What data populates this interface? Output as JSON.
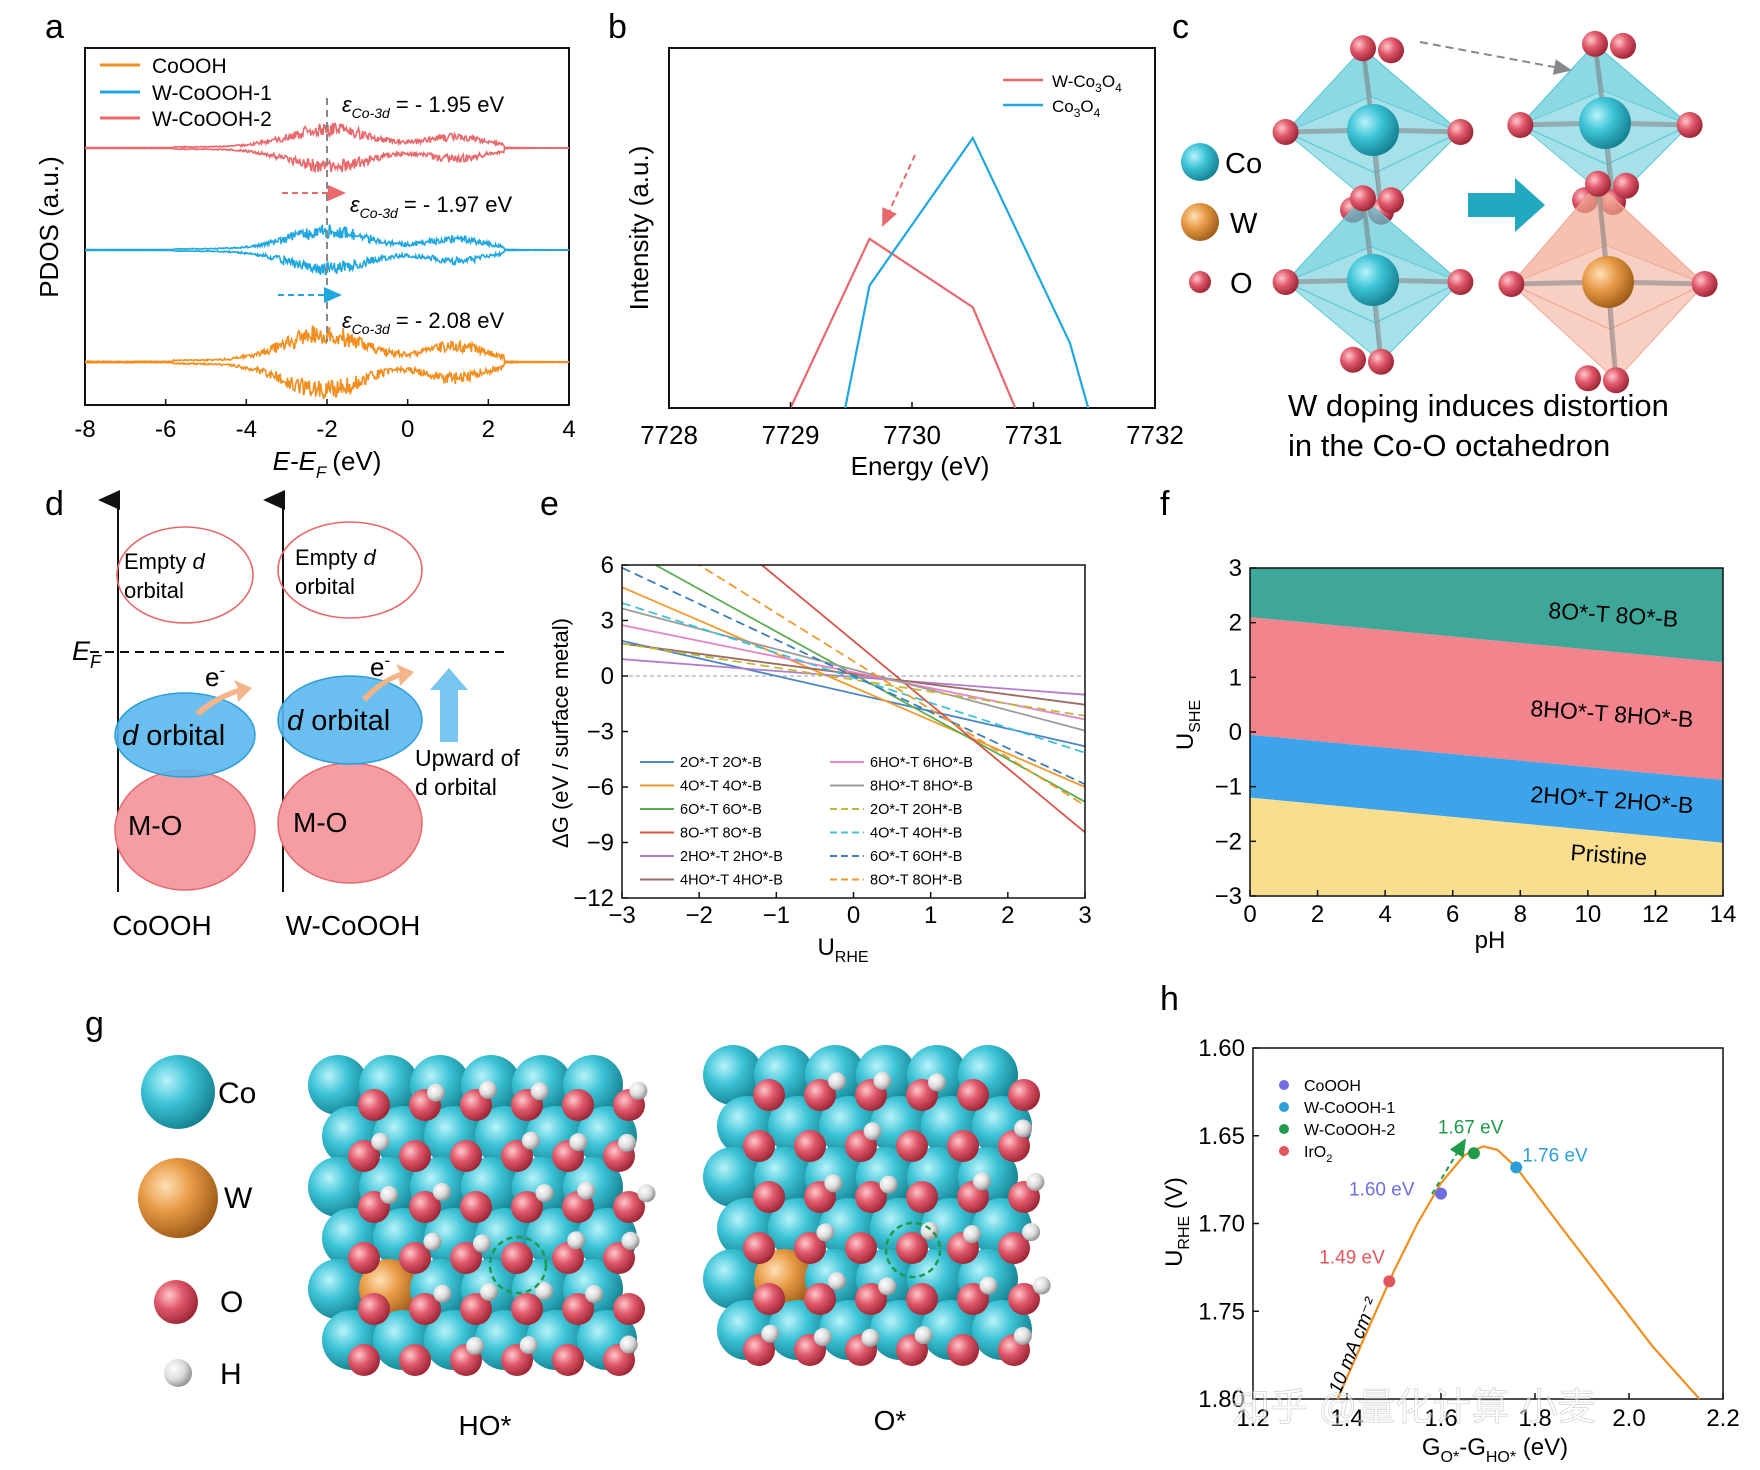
{
  "panels": [
    "a",
    "b",
    "c",
    "d",
    "e",
    "f",
    "g",
    "h"
  ],
  "colors": {
    "orange": "#F28E1E",
    "blue": "#1FA7DF",
    "red": "#E8686C",
    "teal": "#3FA79A",
    "pink": "#F2848E",
    "yellow": "#F8DE8E",
    "co": "#3CC3D6",
    "w": "#E79A45",
    "o": "#E0596A",
    "h": "#D8D8D8"
  },
  "chart_data": [
    {
      "panel": "a",
      "type": "line",
      "xlabel": "E-E",
      "xlabel_sub": "F",
      "xlabel_unit": "(eV)",
      "ylabel": "PDOS (a.u.)",
      "xlim": [
        -8,
        4
      ],
      "xticks": [
        "-8",
        "-6",
        "-4",
        "-2",
        "0",
        "2",
        "4"
      ],
      "legend": [
        "CoOOH",
        "W-CoOOH-1",
        "W-CoOOH-2"
      ],
      "annotations": [
        {
          "text": "ε",
          "sub": "Co-3d",
          "rest": " = - 1.95 eV"
        },
        {
          "text": "ε",
          "sub": "Co-3d",
          "rest": " = - 1.97 eV"
        },
        {
          "text": "ε",
          "sub": "Co-3d",
          "rest": " = - 2.08 eV"
        }
      ],
      "series": [
        {
          "name": "W-CoOOH-2",
          "offset": 2,
          "center": -1.95
        },
        {
          "name": "W-CoOOH-1",
          "offset": 1,
          "center": -1.97
        },
        {
          "name": "CoOOH",
          "offset": 0,
          "center": -2.08
        }
      ]
    },
    {
      "panel": "b",
      "type": "line",
      "xlabel": "Energy (eV)",
      "ylabel": "Intensity (a.u.)",
      "xlim": [
        7728,
        7732
      ],
      "xticks": [
        "7728",
        "7729",
        "7730",
        "7731",
        "7732"
      ],
      "legend": [
        {
          "pre": "W-Co",
          "s1": "3",
          "mid": "O",
          "s2": "4"
        },
        {
          "pre": "Co",
          "s1": "3",
          "mid": "O",
          "s2": "4"
        }
      ],
      "series": [
        {
          "name": "W-Co3O4",
          "x": [
            7729.0,
            7729.65,
            7730.5,
            7730.85
          ],
          "y": [
            0,
            0.47,
            0.28,
            0
          ]
        },
        {
          "name": "Co3O4",
          "x": [
            7729.45,
            7729.65,
            7730.5,
            7731.3,
            7731.45
          ],
          "y": [
            0,
            0.34,
            0.75,
            0.18,
            0
          ]
        }
      ]
    },
    {
      "panel": "e",
      "type": "line",
      "xlabel": "U",
      "xlabel_sub": "RHE",
      "ylabel": "ΔG (eV / surface metal)",
      "xlim": [
        -3,
        3
      ],
      "ylim": [
        -12,
        6
      ],
      "xticks": [
        "−3",
        "−2",
        "−1",
        "0",
        "1",
        "2",
        "3"
      ],
      "yticks": [
        "6",
        "3",
        "0",
        "−3",
        "−6",
        "−9",
        "−12"
      ],
      "series": [
        {
          "name": "2O*-T 2O*-B",
          "color": "#4C86C6",
          "dash": false,
          "y0": -0.95,
          "slope": -0.95
        },
        {
          "name": "4O*-T 4O*-B",
          "color": "#F2992E",
          "dash": false,
          "y0": -0.6,
          "slope": -1.8
        },
        {
          "name": "6O*-T 6O*-B",
          "color": "#5AAE4F",
          "dash": false,
          "y0": 0.1,
          "slope": -2.3
        },
        {
          "name": "8O-*T 8O*-B",
          "color": "#D95448",
          "dash": false,
          "y0": 1.9,
          "slope": -3.45
        },
        {
          "name": "2HO*-T 2HO*-B",
          "color": "#B07CCC",
          "dash": false,
          "y0": -0.05,
          "slope": -0.32
        },
        {
          "name": "4HO*-T 4HO*-B",
          "color": "#9D6B62",
          "dash": false,
          "y0": 0.1,
          "slope": -0.55
        },
        {
          "name": "6HO*-T 6HO*-B",
          "color": "#E983C7",
          "dash": false,
          "y0": 0.2,
          "slope": -0.85
        },
        {
          "name": "8HO*-T 8HO*-B",
          "color": "#9C9C9C",
          "dash": false,
          "y0": 0.35,
          "slope": -1.1
        },
        {
          "name": "2O*-T 2OH*-B",
          "color": "#BBBB3A",
          "dash": true,
          "y0": -0.2,
          "slope": -0.65
        },
        {
          "name": "4O*-T 4OH*-B",
          "color": "#41C2D2",
          "dash": true,
          "y0": -0.1,
          "slope": -1.35
        },
        {
          "name": "6O*-T 6OH*-B",
          "color": "#3F7DB5",
          "dash": true,
          "y0": 0.0,
          "slope": -1.95
        },
        {
          "name": "8O*-T 8OH*-B",
          "color": "#F2992E",
          "dash": true,
          "y0": 0.8,
          "slope": -2.6
        }
      ]
    },
    {
      "panel": "f",
      "type": "area",
      "xlabel": "pH",
      "ylabel": "U",
      "ylabel_sub": "SHE",
      "xlim": [
        0,
        14
      ],
      "ylim": [
        -3,
        3
      ],
      "xticks": [
        "0",
        "2",
        "4",
        "6",
        "8",
        "10",
        "12",
        "14"
      ],
      "yticks": [
        "3",
        "2",
        "1",
        "0",
        "−1",
        "−2",
        "−3"
      ],
      "boundaries": [
        {
          "at_ph0": 2.1,
          "slope": -0.0591
        },
        {
          "at_ph0": -0.05,
          "slope": -0.0591
        },
        {
          "at_ph0": -1.2,
          "slope": -0.0591
        }
      ],
      "regions": [
        "8O*-T 8O*-B",
        "8HO*-T 8HO*-B",
        "2HO*-T 2HO*-B",
        "Pristine"
      ]
    },
    {
      "panel": "h",
      "type": "scatter",
      "xlabel": "G",
      "xlabel_sub1": "O*",
      "xlabel_mid": "-G",
      "xlabel_sub2": "HO*",
      "xlabel_unit": " (eV)",
      "ylabel": "U",
      "ylabel_sub": "RHE",
      "ylabel_unit": " (V)",
      "xlim": [
        1.2,
        2.2
      ],
      "ylim": [
        1.8,
        1.6
      ],
      "xticks": [
        "1.2",
        "1.4",
        "1.6",
        "1.8",
        "2.0",
        "2.2"
      ],
      "yticks": [
        "1.60",
        "1.65",
        "1.70",
        "1.75",
        "1.80"
      ],
      "curve_label": "10 mA cm⁻²",
      "curve": {
        "x": [
          1.38,
          1.45,
          1.5,
          1.55,
          1.6,
          1.65,
          1.69,
          1.72,
          1.76,
          1.85,
          1.95,
          2.05,
          2.15
        ],
        "y": [
          1.8,
          1.757,
          1.727,
          1.7,
          1.677,
          1.661,
          1.656,
          1.658,
          1.668,
          1.7,
          1.735,
          1.77,
          1.8
        ]
      },
      "series": [
        {
          "name": "CoOOH",
          "x": 1.6,
          "y": 1.683,
          "label": "1.60 eV",
          "color": "#6E6EE0"
        },
        {
          "name": "W-CoOOH-1",
          "x": 1.76,
          "y": 1.668,
          "label": "1.76 eV",
          "color": "#2C9ED8"
        },
        {
          "name": "W-CoOOH-2",
          "x": 1.67,
          "y": 1.66,
          "label": "1.67 eV",
          "color": "#1E9A48"
        },
        {
          "name": "IrO",
          "name_sub": "2",
          "x": 1.49,
          "y": 1.733,
          "label": "1.49 eV",
          "color": "#E2555D"
        }
      ]
    }
  ],
  "panel_c": {
    "legend": [
      "Co",
      "W",
      "O"
    ],
    "caption_line1": "W doping induces distortion",
    "caption_line2": "in the Co-O octahedron"
  },
  "panel_d": {
    "ef_label": "E",
    "ef_sub": "F",
    "empty_line1": "Empty ",
    "empty_d": "d",
    "empty_line2": "orbital",
    "d_italic": "d",
    "d_label": " orbital",
    "mo_label": "M-O",
    "e_label": "e",
    "e_sup": "-",
    "upward_line1": "Upward of",
    "upward_line2": "d orbital",
    "left_caption": "CoOOH",
    "right_caption": "W-CoOOH"
  },
  "panel_g": {
    "legend": [
      "Co",
      "W",
      "O",
      "H"
    ],
    "captions": [
      "HO*",
      "O*"
    ]
  },
  "watermark": "知乎 @量化计算 小麦"
}
